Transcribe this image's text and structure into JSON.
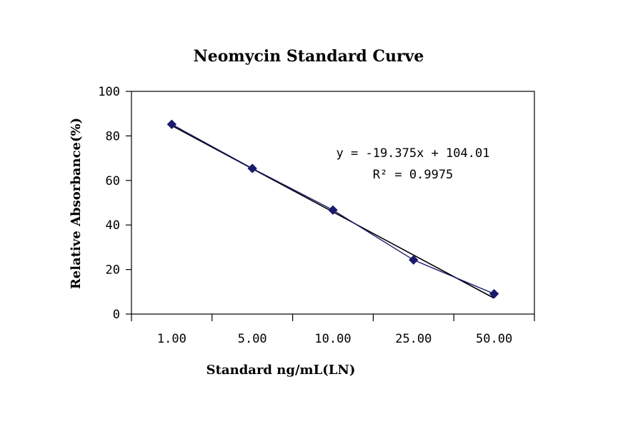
{
  "chart_data": {
    "type": "line",
    "title": "Neomycin Standard Curve",
    "xlabel": "Standard ng/mL(LN)",
    "ylabel": "Relative Absorbance(%)",
    "categories": [
      "1.00",
      "5.00",
      "10.00",
      "25.00",
      "50.00"
    ],
    "ylim": [
      0,
      100
    ],
    "yticks": [
      "0",
      "20",
      "40",
      "60",
      "80",
      "100"
    ],
    "grid": false,
    "series": [
      {
        "values": [
          85.2,
          65.4,
          46.7,
          24.3,
          9.1
        ],
        "marker": "diamond",
        "color": "#1a1a6e"
      }
    ],
    "trendline": {
      "slope": -19.375,
      "intercept": 104.01,
      "color": "#000000",
      "equation": "y = -19.375x + 104.01",
      "r_squared_label": "R² = 0.9975"
    }
  }
}
